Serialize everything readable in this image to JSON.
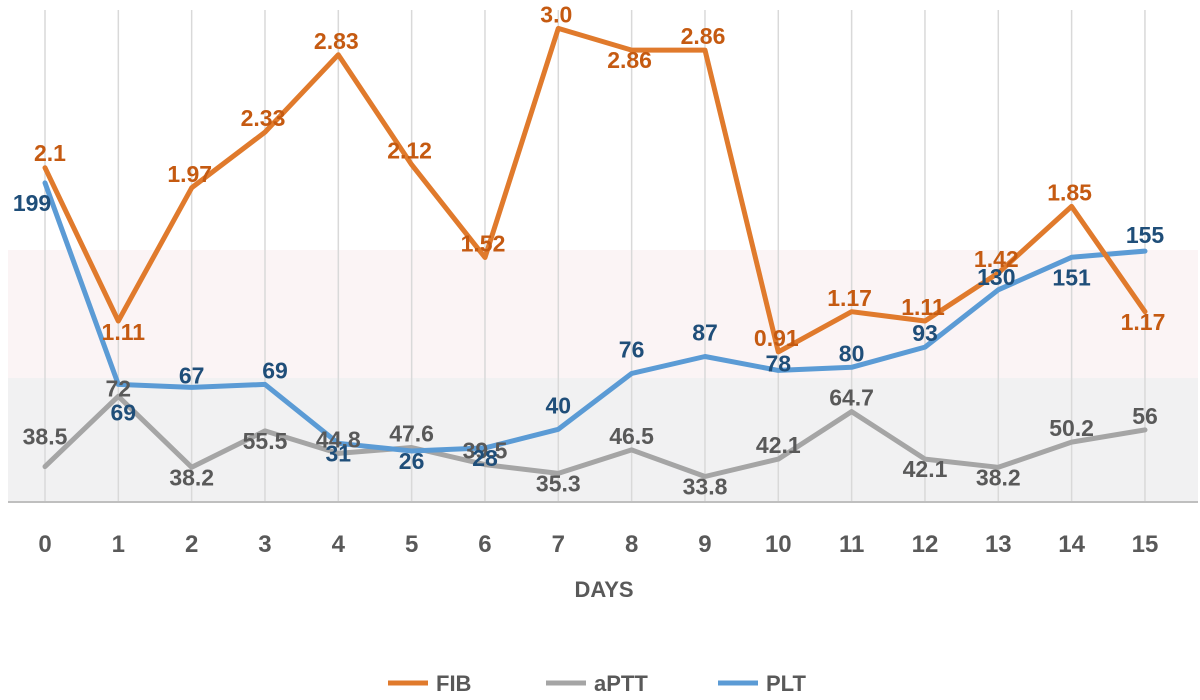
{
  "chart_data": {
    "type": "line",
    "xlabel": "DAYS",
    "categories": [
      "0",
      "1",
      "2",
      "3",
      "4",
      "5",
      "6",
      "7",
      "8",
      "9",
      "10",
      "11",
      "12",
      "13",
      "14",
      "15"
    ],
    "colors": {
      "FIB": "#e07a2c",
      "aPTT": "#a5a5a5",
      "PLT": "#5b9bd5",
      "FIB_label": "#c55a11",
      "aPTT_label": "#595959",
      "PLT_label": "#1f4e79"
    },
    "legend_position": "bottom",
    "series": [
      {
        "name": "FIB",
        "values": [
          2.1,
          1.11,
          1.97,
          2.33,
          2.83,
          2.12,
          1.52,
          3.0,
          2.86,
          2.86,
          0.91,
          1.17,
          1.11,
          1.42,
          1.85,
          1.17
        ],
        "labels": [
          "2.1",
          "1.11",
          "1.97",
          "2.33",
          "2.83",
          "2.12",
          "1.52",
          "3.0",
          "2.86",
          "2.86",
          "0.91",
          "1.17",
          "1.11",
          "1.42",
          "1.85",
          "1.17"
        ]
      },
      {
        "name": "aPTT",
        "values": [
          38.5,
          72,
          38.2,
          55.5,
          44.8,
          47.6,
          39.5,
          35.3,
          46.5,
          33.8,
          42.1,
          64.7,
          42.1,
          38.2,
          50.2,
          56
        ],
        "labels": [
          "38.5",
          "72",
          "38.2",
          "55.5",
          "44.8",
          "47.6",
          "39.5",
          "35.3",
          "46.5",
          "33.8",
          "42.1",
          "64.7",
          "42.1",
          "38.2",
          "50.2",
          "56"
        ]
      },
      {
        "name": "PLT",
        "values": [
          199,
          69,
          67,
          69,
          31,
          26,
          28,
          40,
          76,
          87,
          78,
          80,
          93,
          130,
          151,
          155
        ],
        "labels": [
          "199",
          "69",
          "67",
          "69",
          "31",
          "26",
          "28",
          "40",
          "76",
          "87",
          "78",
          "80",
          "93",
          "130",
          "151",
          "155"
        ]
      }
    ]
  }
}
